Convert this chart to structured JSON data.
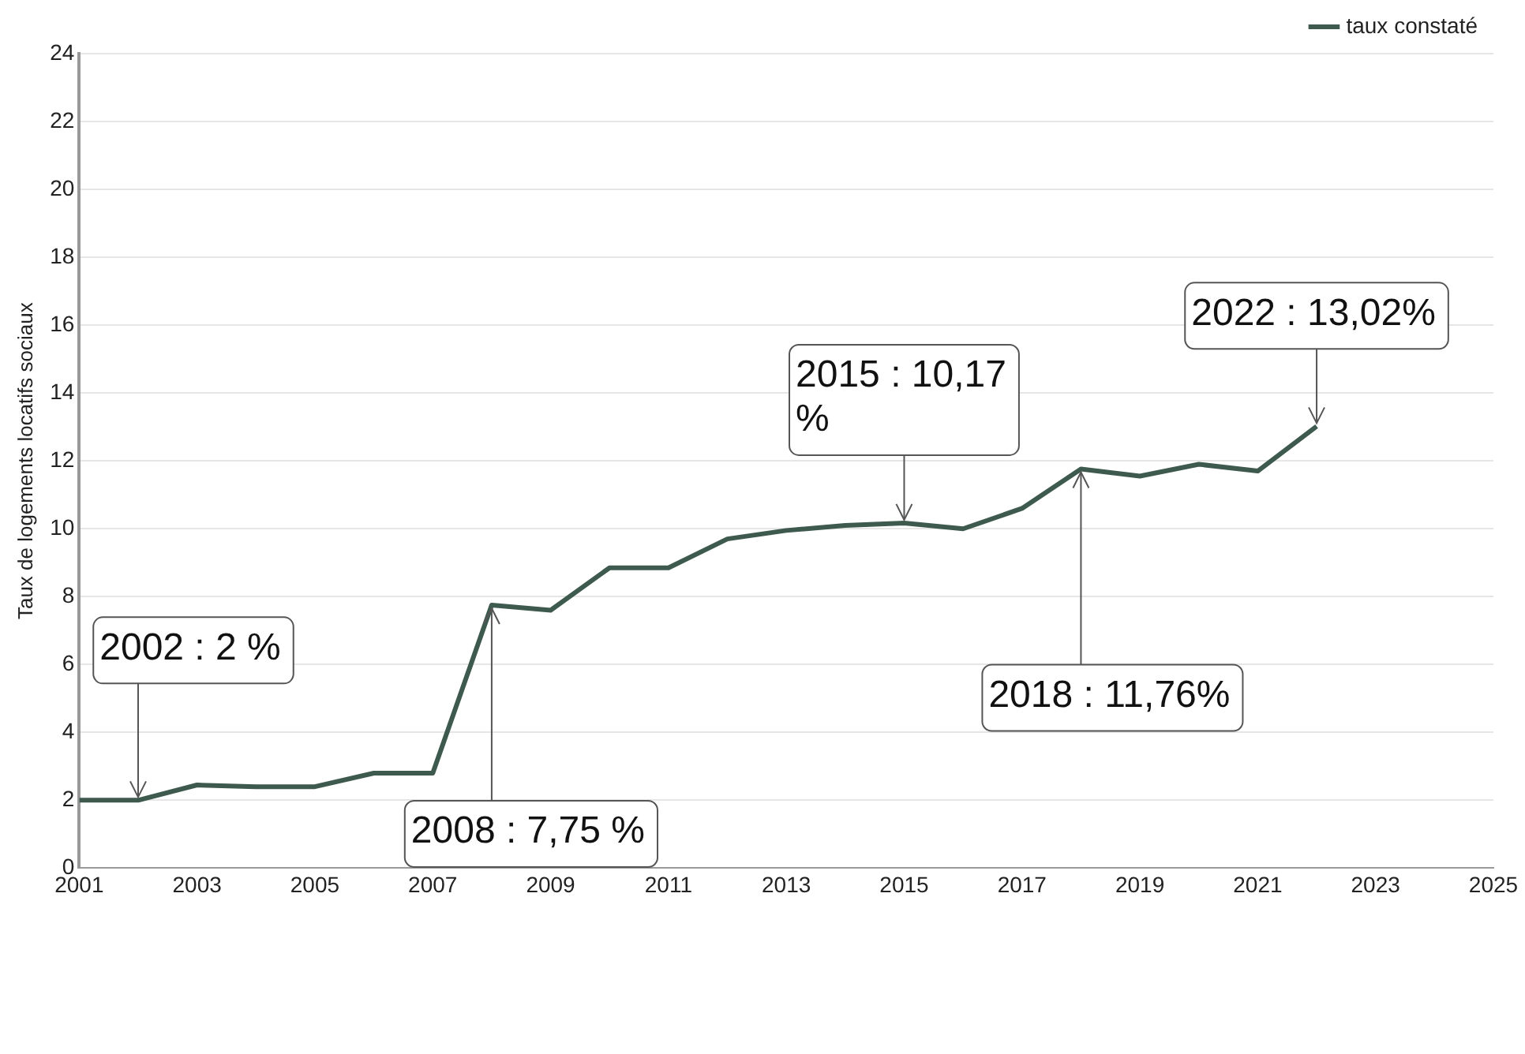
{
  "chart_data": {
    "type": "line",
    "ylabel": "Taux de logements locatifs sociaux",
    "x": [
      2001,
      2002,
      2003,
      2004,
      2005,
      2006,
      2007,
      2008,
      2009,
      2010,
      2011,
      2012,
      2013,
      2014,
      2015,
      2016,
      2017,
      2018,
      2019,
      2020,
      2021,
      2022
    ],
    "series": [
      {
        "name": "taux constaté",
        "color": "#3e5a4f",
        "values": [
          2.0,
          2.0,
          2.45,
          2.4,
          2.4,
          2.8,
          2.8,
          7.75,
          7.6,
          8.85,
          8.85,
          9.7,
          9.95,
          10.1,
          10.17,
          10.0,
          10.6,
          11.76,
          11.55,
          11.9,
          11.7,
          13.02
        ]
      }
    ],
    "xlim": [
      2001,
      2025
    ],
    "xticks": [
      2001,
      2003,
      2005,
      2007,
      2009,
      2011,
      2013,
      2015,
      2017,
      2019,
      2021,
      2023,
      2025
    ],
    "ylim": [
      0,
      24
    ],
    "yticks": [
      0,
      2,
      4,
      6,
      8,
      10,
      12,
      14,
      16,
      18,
      20,
      22,
      24
    ],
    "grid": "y",
    "legend": "top right",
    "marker": "none",
    "line_style": "solid",
    "annotations": [
      {
        "text": "2002 : 2 %",
        "x": 2002,
        "y": 2.0
      },
      {
        "text": "2008 : 7,75 %",
        "x": 2008,
        "y": 7.75
      },
      {
        "text": "2015 : 10,17\n%",
        "x": 2015,
        "y": 10.17
      },
      {
        "text": "2018 : 11,76%",
        "x": 2018,
        "y": 11.76
      },
      {
        "text": "2022 : 13,02%",
        "x": 2022,
        "y": 13.02
      }
    ]
  }
}
